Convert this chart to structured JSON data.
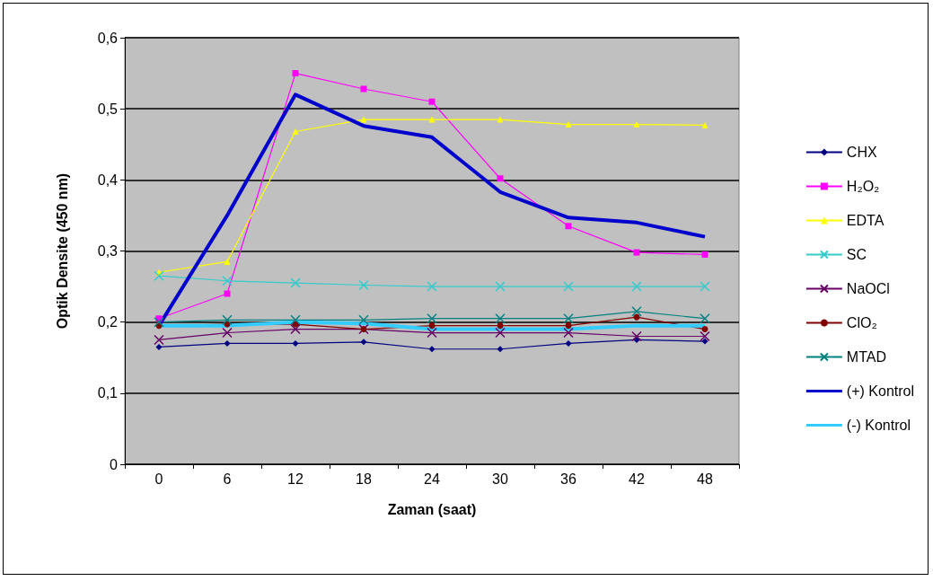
{
  "chart_data": {
    "type": "line",
    "xlabel": "Zaman (saat)",
    "ylabel": "Optik Densite (450 nm)",
    "categories": [
      "0",
      "6",
      "12",
      "18",
      "24",
      "30",
      "36",
      "42",
      "48"
    ],
    "ylim": [
      0,
      0.6
    ],
    "yticks": [
      {
        "value": 0,
        "label": "0"
      },
      {
        "value": 0.1,
        "label": "0,1"
      },
      {
        "value": 0.2,
        "label": "0,2"
      },
      {
        "value": 0.3,
        "label": "0,3"
      },
      {
        "value": 0.4,
        "label": "0,4"
      },
      {
        "value": 0.5,
        "label": "0,5"
      },
      {
        "value": 0.6,
        "label": "0,6"
      }
    ],
    "grid": "y",
    "legend": "right",
    "series": [
      {
        "name": "CHX",
        "color": "#000080",
        "marker": "diamond",
        "values": [
          0.165,
          0.17,
          0.17,
          0.172,
          0.162,
          0.162,
          0.17,
          0.175,
          0.173
        ]
      },
      {
        "name": "H₂O₂",
        "color": "#ff00ff",
        "marker": "square",
        "values": [
          0.205,
          0.24,
          0.55,
          0.528,
          0.51,
          0.402,
          0.335,
          0.298,
          0.295
        ]
      },
      {
        "name": "EDTA",
        "color": "#ffff00",
        "marker": "triangle",
        "values": [
          0.27,
          0.285,
          0.468,
          0.485,
          0.485,
          0.485,
          0.478,
          0.478,
          0.477
        ]
      },
      {
        "name": "SC",
        "color": "#33cccc",
        "marker": "cross",
        "values": [
          0.265,
          0.258,
          0.255,
          0.252,
          0.25,
          0.25,
          0.25,
          0.25,
          0.25
        ]
      },
      {
        "name": "NaOCl",
        "color": "#660066",
        "marker": "cross",
        "values": [
          0.175,
          0.185,
          0.19,
          0.19,
          0.185,
          0.185,
          0.185,
          0.18,
          0.18
        ]
      },
      {
        "name": "ClO₂",
        "color": "#800000",
        "marker": "circle",
        "values": [
          0.195,
          0.197,
          0.197,
          0.19,
          0.195,
          0.195,
          0.195,
          0.207,
          0.19
        ]
      },
      {
        "name": "MTAD",
        "color": "#008080",
        "marker": "cross",
        "values": [
          0.2,
          0.203,
          0.203,
          0.203,
          0.205,
          0.205,
          0.205,
          0.215,
          0.205
        ]
      },
      {
        "name": "(+) Kontrol",
        "color": "#0000cc",
        "marker": "none",
        "values": [
          0.195,
          0.35,
          0.52,
          0.476,
          0.46,
          0.383,
          0.347,
          0.34,
          0.32
        ]
      },
      {
        "name": "(-) Kontrol",
        "color": "#33ccff",
        "marker": "none",
        "values": [
          0.195,
          0.195,
          0.2,
          0.198,
          0.19,
          0.19,
          0.19,
          0.195,
          0.195
        ]
      }
    ]
  }
}
